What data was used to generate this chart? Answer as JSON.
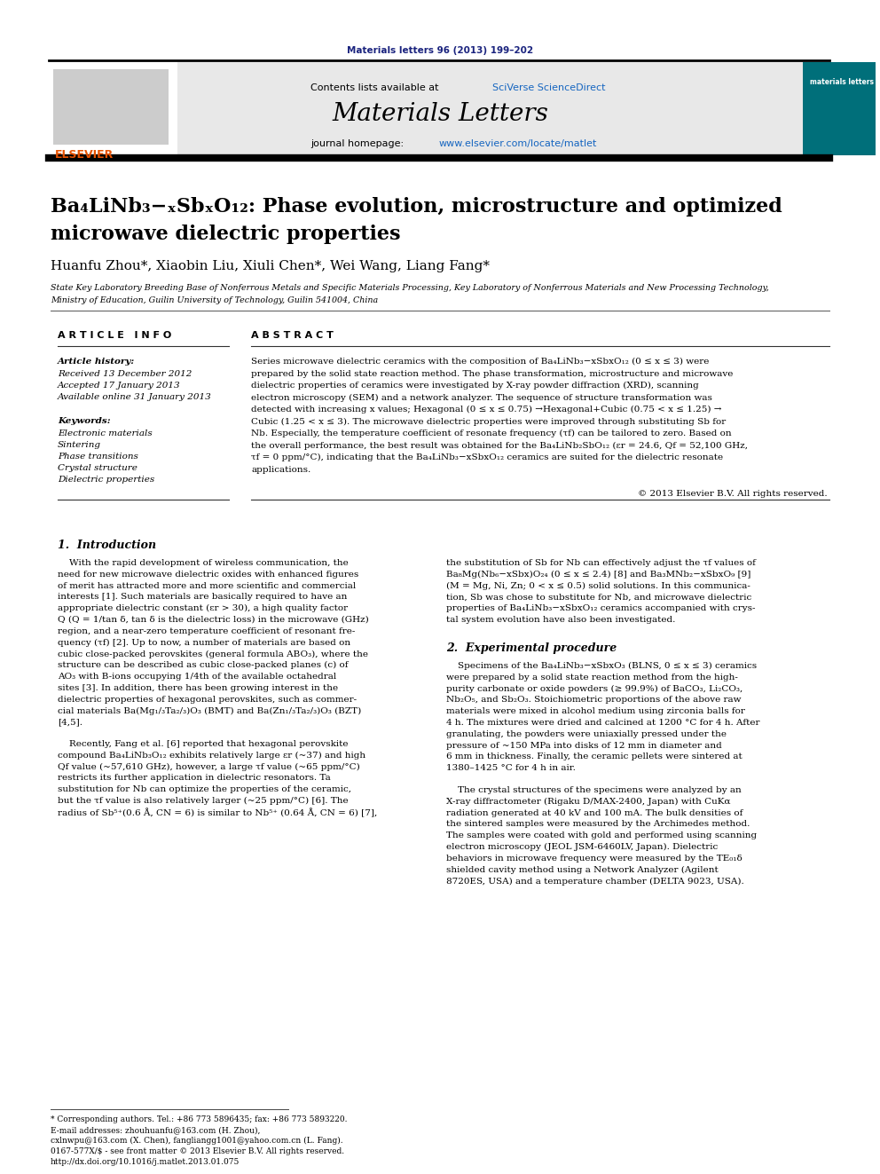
{
  "page_width": 9.92,
  "page_height": 13.23,
  "background_color": "#ffffff",
  "journal_ref": "Materials letters 96 (2013) 199–202",
  "journal_ref_color": "#1a237e",
  "header_bg": "#e8e8e8",
  "sciverse_color": "#1565c0",
  "journal_url_color": "#1565c0",
  "affiliation1": "State Key Laboratory Breeding Base of Nonferrous Metals and Specific Materials Processing, Key Laboratory of Nonferrous Materials and New Processing Technology,",
  "affiliation2": "Ministry of Education, Guilin University of Technology, Guilin 541004, China",
  "keywords": [
    "Electronic materials",
    "Sintering",
    "Phase transitions",
    "Crystal structure",
    "Dielectric properties"
  ],
  "copyright": "© 2013 Elsevier B.V. All rights reserved.",
  "footnote1": "* Corresponding authors. Tel.: +86 773 5896435; fax: +86 773 5893220.",
  "footnote2": "E-mail addresses: zhouhuanfu@163.com (H. Zhou),",
  "footnote3": "cxlnwpu@163.com (X. Chen), fangliangg1001@yahoo.com.cn (L. Fang).",
  "footnote4": "0167-577X/$ - see front matter © 2013 Elsevier B.V. All rights reserved.",
  "footnote5": "http://dx.doi.org/10.1016/j.matlet.2013.01.075",
  "elsevier_color": "#e65100",
  "teal_sidebar_color": "#006f7a"
}
